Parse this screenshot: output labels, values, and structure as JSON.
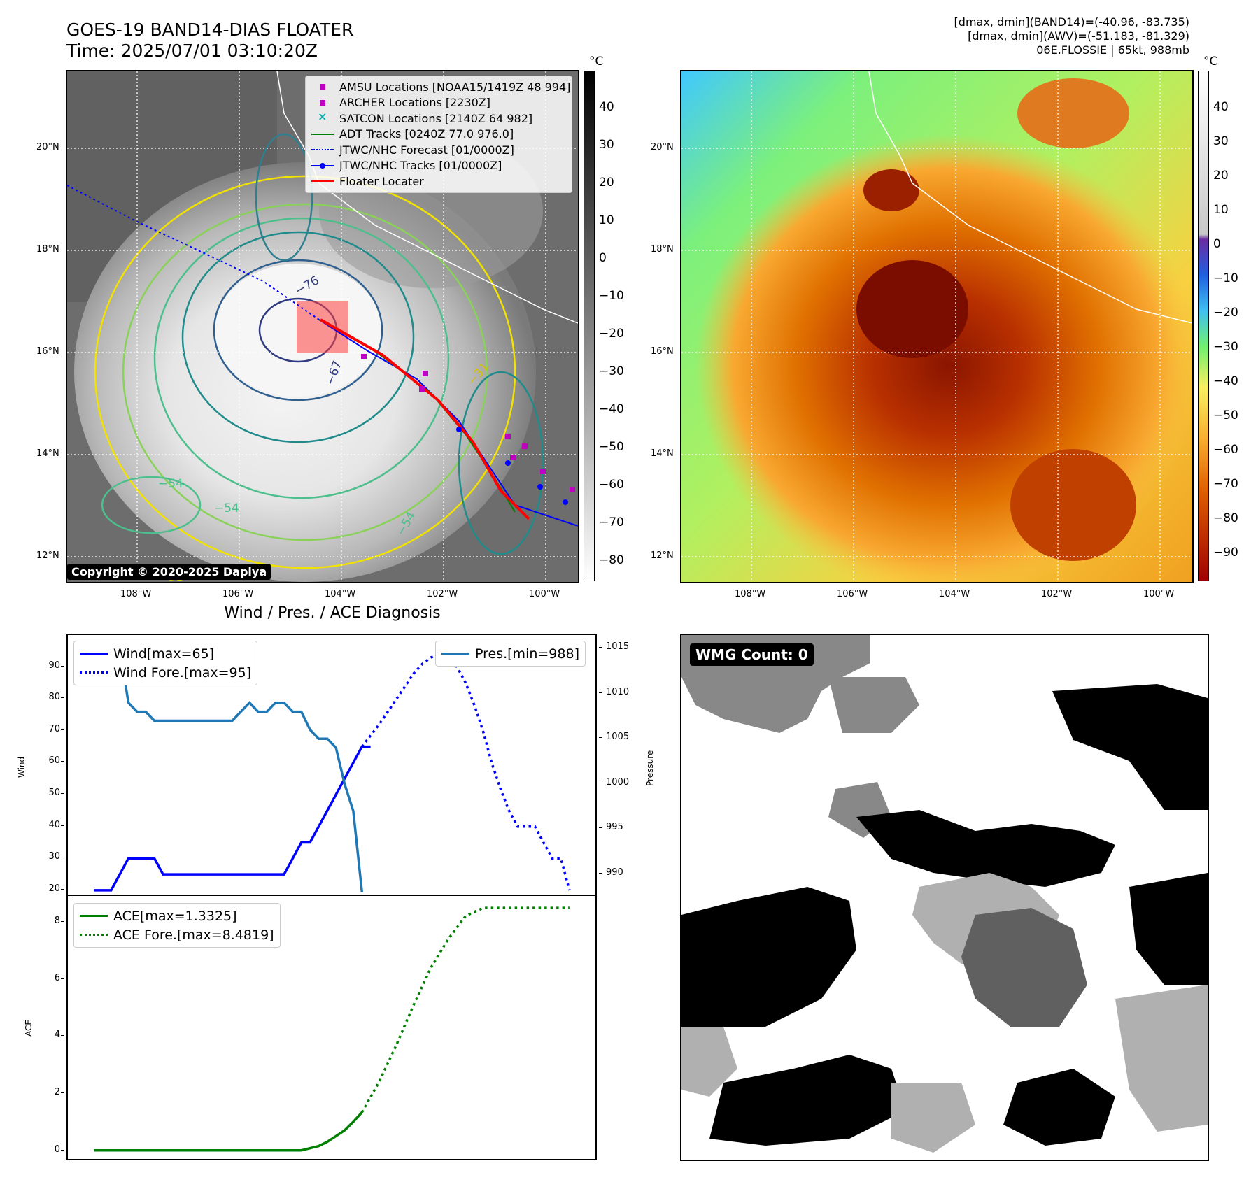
{
  "header": {
    "title_line1": "GOES-19 BAND14-DIAS FLOATER",
    "title_line2": "Time: 2025/07/01 03:10:20Z",
    "info_line1": "[dmax, dmin](BAND14)=(-40.96, -83.735)",
    "info_line2": "[dmax, dmin](AWV)=(-51.183, -81.329)",
    "info_line3": "06E.FLOSSIE | 65kt, 988mb"
  },
  "map_axes": {
    "lat_labels": [
      "20°N",
      "18°N",
      "16°N",
      "14°N",
      "12°N"
    ],
    "lon_labels": [
      "108°W",
      "106°W",
      "104°W",
      "102°W",
      "100°W"
    ]
  },
  "ir_panel": {
    "colorbar_unit": "°C",
    "colorbar_ticks": [
      "40",
      "30",
      "20",
      "10",
      "0",
      "−10",
      "−20",
      "−30",
      "−40",
      "−50",
      "−60",
      "−70",
      "−80"
    ],
    "contour_labels": [
      "−76",
      "−67",
      "−54",
      "−54",
      "−54",
      "−31",
      "−31"
    ],
    "copyright": "Copyright © 2020-2025 Dapiya",
    "legend": [
      {
        "label": "AMSU Locations [NOAA15/1419Z 48 994]",
        "symbol": "magenta-square",
        "color": "#c000c0"
      },
      {
        "label": "ARCHER Locations [2230Z]",
        "symbol": "magenta-square",
        "color": "#c000c0"
      },
      {
        "label": "SATCON Locations [2140Z 64 982]",
        "symbol": "cyan-x",
        "color": "#00b0b0"
      },
      {
        "label": "ADT Tracks [0240Z 77.0 976.0]",
        "symbol": "green-line",
        "color": "#008000"
      },
      {
        "label": "JTWC/NHC Forecast [01/0000Z]",
        "symbol": "blue-dotted-line",
        "color": "#0000ff"
      },
      {
        "label": "JTWC/NHC Tracks [01/0000Z]",
        "symbol": "blue-line-dot",
        "color": "#0000ff"
      },
      {
        "label": "Floater Locater",
        "symbol": "red-line",
        "color": "#ff0000"
      }
    ]
  },
  "awv_panel": {
    "colorbar_unit": "°C",
    "colorbar_ticks": [
      "40",
      "30",
      "20",
      "10",
      "0",
      "−10",
      "−20",
      "−30",
      "−40",
      "−50",
      "−60",
      "−70",
      "−80",
      "−90"
    ]
  },
  "wmg_panel": {
    "badge": "WMG Count: 0"
  },
  "chart_data": [
    {
      "type": "line",
      "title": "Wind / Pres. / ACE Diagnosis",
      "ylabel": "Wind",
      "y2label": "Pressure",
      "ylim": [
        18,
        100
      ],
      "y2lim": [
        987.5,
        1016.5
      ],
      "yticks": [
        20,
        30,
        40,
        50,
        60,
        70,
        80,
        90
      ],
      "y2ticks": [
        990,
        995,
        1000,
        1005,
        1010,
        1015
      ],
      "legend_left": [
        "Wind[max=65]",
        "Wind Fore.[max=95]"
      ],
      "legend_right": [
        "Pres.[min=988]"
      ],
      "series": [
        {
          "name": "Wind[max=65]",
          "axis": "left",
          "style": "solid",
          "color": "#0000ff",
          "x": [
            0,
            1,
            2,
            3,
            4,
            5,
            6,
            7,
            8,
            9,
            10,
            11,
            12,
            13,
            14,
            15,
            16,
            17,
            18,
            19,
            20,
            21,
            22,
            23,
            24,
            25,
            26,
            27,
            28,
            29,
            30,
            31,
            32
          ],
          "values": [
            20,
            20,
            20,
            25,
            30,
            30,
            30,
            30,
            25,
            25,
            25,
            25,
            25,
            25,
            25,
            25,
            25,
            25,
            25,
            25,
            25,
            25,
            25,
            30,
            35,
            35,
            40,
            45,
            50,
            55,
            60,
            65,
            65
          ]
        },
        {
          "name": "Wind Fore.[max=95]",
          "axis": "left",
          "style": "dotted",
          "color": "#0000ff",
          "x": [
            31,
            33,
            35,
            37,
            38,
            39,
            40,
            41,
            42,
            43,
            44,
            45,
            46,
            47,
            48,
            49,
            50,
            51,
            52,
            53,
            54,
            55
          ],
          "values": [
            65,
            72,
            80,
            88,
            91,
            93,
            94,
            93,
            90,
            85,
            78,
            70,
            60,
            52,
            45,
            40,
            40,
            40,
            35,
            30,
            30,
            20
          ]
        },
        {
          "name": "Pres.[min=988]",
          "axis": "right",
          "style": "solid",
          "color": "#1f77b4",
          "x": [
            0,
            1,
            2,
            3,
            4,
            5,
            6,
            7,
            8,
            9,
            10,
            11,
            12,
            13,
            14,
            15,
            16,
            17,
            18,
            19,
            20,
            21,
            22,
            23,
            24,
            25,
            26,
            27,
            28,
            29,
            30,
            31
          ],
          "values": [
            1015,
            1015,
            1015,
            1015,
            1009,
            1008,
            1008,
            1007,
            1007,
            1007,
            1007,
            1007,
            1007,
            1007,
            1007,
            1007,
            1007,
            1008,
            1009,
            1008,
            1008,
            1009,
            1009,
            1008,
            1008,
            1006,
            1005,
            1005,
            1004,
            1000,
            997,
            988
          ]
        }
      ]
    },
    {
      "type": "line",
      "ylabel": "ACE",
      "ylim": [
        -0.3,
        8.9
      ],
      "yticks": [
        0,
        2,
        4,
        6,
        8
      ],
      "series": [
        {
          "name": "ACE[max=1.3325]",
          "style": "solid",
          "color": "#008000",
          "x": [
            0,
            4,
            8,
            12,
            16,
            20,
            23,
            24,
            26,
            27,
            28,
            29,
            30,
            31
          ],
          "values": [
            0,
            0,
            0,
            0,
            0,
            0,
            0,
            0,
            0.15,
            0.3,
            0.5,
            0.7,
            1.0,
            1.3325
          ]
        },
        {
          "name": "ACE Fore.[max=8.4819]",
          "style": "dotted",
          "color": "#008000",
          "x": [
            31,
            33,
            35,
            37,
            39,
            41,
            43,
            45,
            47,
            49,
            51,
            55
          ],
          "values": [
            1.3325,
            2.4,
            3.7,
            5.1,
            6.4,
            7.4,
            8.2,
            8.4819,
            8.4819,
            8.4819,
            8.4819,
            8.4819
          ]
        }
      ]
    }
  ]
}
